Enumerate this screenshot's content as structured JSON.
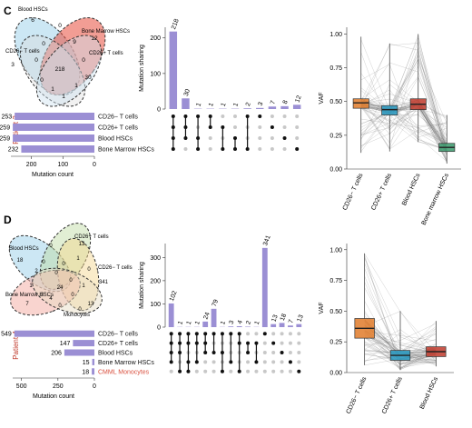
{
  "colors": {
    "upset_bar": "#9b8fd4",
    "dot_on": "#111111",
    "dot_off": "#c8c8c8",
    "cd26neg": "#e07b2a",
    "cd26pos": "#2596be",
    "blood": "#c0392b",
    "bone_marrow": "#3a9a6c",
    "patient_label": "#c0392b",
    "monocyte_label": "#d94f3d"
  },
  "panels": [
    {
      "letter": "C",
      "patient_label": "Patient 3",
      "venn": {
        "set_labels": [
          "Blood HSCs",
          "Bone Marrow HSCs",
          "CD26− T cells",
          "CD26+ T cells"
        ],
        "region_counts": [
          "6",
          "0",
          "12",
          "0",
          "9",
          "3",
          "0",
          "218",
          "0",
          "30",
          "0",
          "1",
          "1",
          "1"
        ]
      },
      "set_sizes": {
        "xlabel": "Mutation count",
        "ticks": [
          "200",
          "100",
          "0"
        ],
        "rows": [
          {
            "name": "CD26− T cells",
            "value": 253
          },
          {
            "name": "CD26+ T cells",
            "value": 259
          },
          {
            "name": "Blood HSCs",
            "value": 259
          },
          {
            "name": "Bone Marrow HSCs",
            "value": 232
          }
        ]
      },
      "upset": {
        "ylabel": "Mutation sharing",
        "yticks": [
          "200",
          "100",
          "0"
        ],
        "ymax": 230,
        "bars": [
          {
            "value": 218,
            "sets": [
              0,
              1,
              2,
              3
            ]
          },
          {
            "value": 30,
            "sets": [
              0,
              1,
              2
            ]
          },
          {
            "value": 1,
            "sets": [
              0,
              2,
              3
            ]
          },
          {
            "value": 1,
            "sets": [
              0,
              1
            ]
          },
          {
            "value": 1,
            "sets": [
              1,
              3
            ]
          },
          {
            "value": 1,
            "sets": [
              2,
              3
            ]
          },
          {
            "value": 2,
            "sets": [
              0,
              3
            ]
          },
          {
            "value": 3,
            "sets": [
              0
            ]
          },
          {
            "value": 7,
            "sets": [
              1
            ]
          },
          {
            "value": 8,
            "sets": [
              2
            ]
          },
          {
            "value": 12,
            "sets": [
              3
            ]
          }
        ]
      }
    },
    {
      "letter": "D",
      "patient_label": "Patient 4",
      "venn": {
        "set_labels": [
          "Blood HSCs",
          "CD26+ T cells",
          "CD26− T cells",
          "Bone Marrow HSCs",
          "Monocytes"
        ],
        "region_counts": [
          "18",
          "13",
          "341",
          "7",
          "13",
          "0",
          "2",
          "1",
          "0",
          "0",
          "0",
          "0",
          "1",
          "0",
          "1",
          "3",
          "24",
          "4",
          "0",
          "0",
          "0"
        ]
      },
      "set_sizes": {
        "xlabel": "Mutation count",
        "ticks": [
          "500",
          "250",
          "0"
        ],
        "rows": [
          {
            "name": "CD26− T cells",
            "value": 549,
            "color": "#111111"
          },
          {
            "name": "CD26+ T cells",
            "value": 147,
            "color": "#111111"
          },
          {
            "name": "Blood HSCs",
            "value": 206,
            "color": "#111111"
          },
          {
            "name": "Bone Marrow HSCs",
            "value": 15,
            "color": "#111111"
          },
          {
            "name": "CMML Monocytes",
            "value": 18,
            "color": "#d94f3d"
          }
        ]
      },
      "upset": {
        "ylabel": "Mutation sharing",
        "yticks": [
          "300",
          "200",
          "100",
          "0"
        ],
        "ymax": 360,
        "bars": [
          {
            "value": 102,
            "sets": [
              0,
              1,
              2,
              3
            ]
          },
          {
            "value": 1,
            "sets": [
              0,
              1,
              2,
              4
            ]
          },
          {
            "value": 1,
            "sets": [
              0,
              1,
              3,
              4
            ]
          },
          {
            "value": 1,
            "sets": [
              0,
              1,
              3
            ]
          },
          {
            "value": 24,
            "sets": [
              0,
              1,
              2
            ]
          },
          {
            "value": 79,
            "sets": [
              0,
              2
            ]
          },
          {
            "value": 1,
            "sets": [
              0,
              2,
              4
            ]
          },
          {
            "value": 3,
            "sets": [
              0,
              3
            ]
          },
          {
            "value": 4,
            "sets": [
              0,
              1,
              4
            ]
          },
          {
            "value": 2,
            "sets": [
              1,
              2
            ]
          },
          {
            "value": 1,
            "sets": [
              1,
              3
            ]
          },
          {
            "value": 341,
            "sets": [
              0
            ]
          },
          {
            "value": 13,
            "sets": [
              1
            ]
          },
          {
            "value": 18,
            "sets": [
              2
            ]
          },
          {
            "value": 7,
            "sets": [
              3
            ]
          },
          {
            "value": 13,
            "sets": [
              4
            ]
          }
        ]
      }
    }
  ],
  "chart_data": [
    {
      "type": "box",
      "ylabel": "VAF",
      "yticks": [
        "0.00",
        "0.25",
        "0.50",
        "0.75",
        "1.00"
      ],
      "ylim": [
        0,
        1.05
      ],
      "categories": [
        "CD26− T cells",
        "CD26+ T cells",
        "Blood HSCs",
        "Bone marrow HSCs"
      ],
      "box_colors": [
        "#e07b2a",
        "#2596be",
        "#c0392b",
        "#3a9a6c"
      ],
      "boxes": [
        {
          "q1": 0.45,
          "median": 0.49,
          "q3": 0.52,
          "whisker_low": 0.12,
          "whisker_high": 0.98
        },
        {
          "q1": 0.4,
          "median": 0.44,
          "q3": 0.47,
          "whisker_low": 0.13,
          "whisker_high": 0.93
        },
        {
          "q1": 0.44,
          "median": 0.48,
          "q3": 0.52,
          "whisker_low": 0.2,
          "whisker_high": 1.0
        },
        {
          "q1": 0.13,
          "median": 0.16,
          "q3": 0.19,
          "whisker_low": 0.04,
          "whisker_high": 0.4
        }
      ]
    },
    {
      "type": "box",
      "ylabel": "VAF",
      "yticks": [
        "0.00",
        "0.25",
        "0.50",
        "0.75",
        "1.00"
      ],
      "ylim": [
        0,
        1.05
      ],
      "categories": [
        "CD26− T cells",
        "CD26+ T cells",
        "Blood HSCs"
      ],
      "box_colors": [
        "#e07b2a",
        "#2596be",
        "#c0392b"
      ],
      "boxes": [
        {
          "q1": 0.28,
          "median": 0.36,
          "q3": 0.44,
          "whisker_low": 0.06,
          "whisker_high": 0.97
        },
        {
          "q1": 0.1,
          "median": 0.14,
          "q3": 0.18,
          "whisker_low": 0.02,
          "whisker_high": 0.5
        },
        {
          "q1": 0.13,
          "median": 0.17,
          "q3": 0.21,
          "whisker_low": 0.05,
          "whisker_high": 0.42
        }
      ]
    }
  ]
}
